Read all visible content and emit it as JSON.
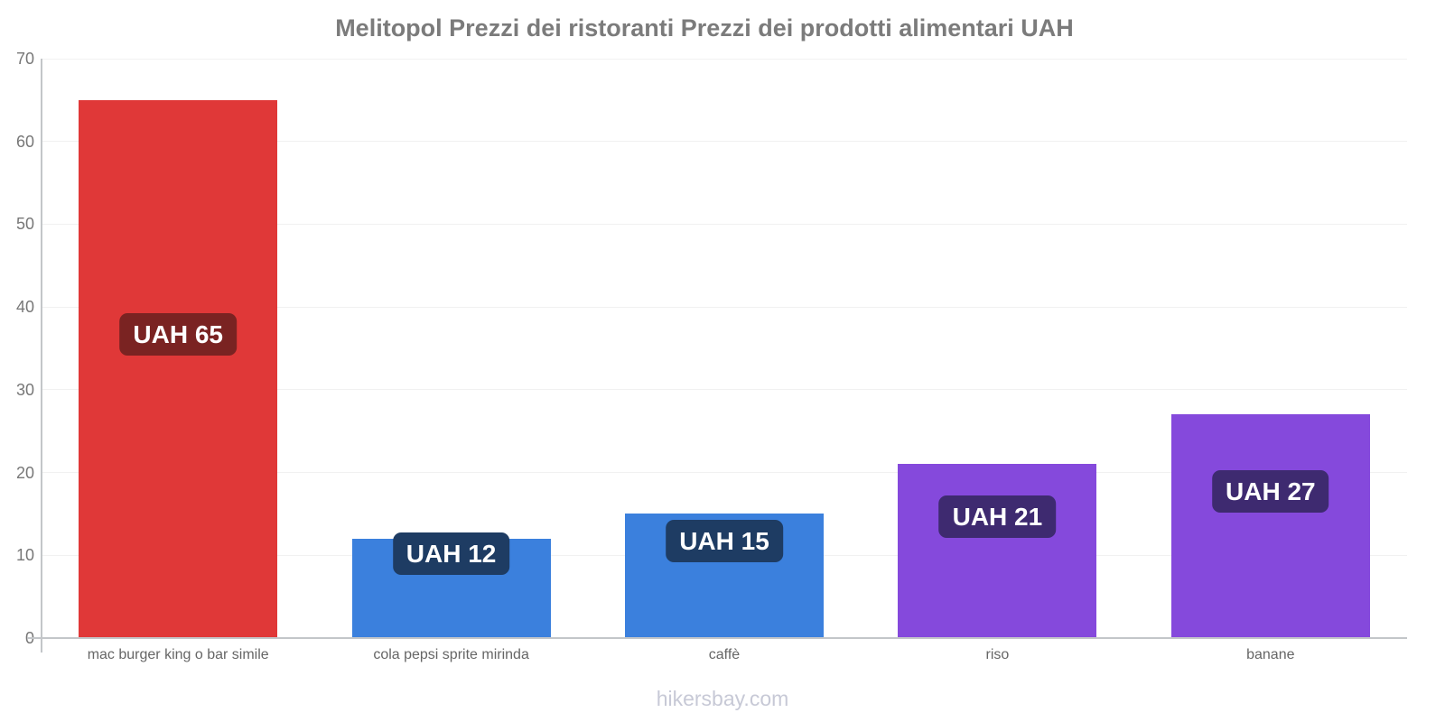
{
  "title": "Melitopol Prezzi dei ristoranti Prezzi dei prodotti alimentari UAH",
  "footer": "hikersbay.com",
  "colors": {
    "title_text": "#7b7b7b",
    "axis": "#c3c6c9",
    "grid": "#f1f1f1",
    "tick_text": "#777777",
    "category_text": "#666666",
    "footer_text": "#c7c9d6",
    "badge_text": "#ffffff"
  },
  "chart_data": {
    "type": "bar",
    "title": "Melitopol Prezzi dei ristoranti Prezzi dei prodotti alimentari UAH",
    "categories": [
      "mac burger king o bar simile",
      "cola pepsi sprite mirinda",
      "caffè",
      "riso",
      "banane"
    ],
    "values": [
      65,
      12,
      15,
      21,
      27
    ],
    "bar_labels": [
      "UAH 65",
      "UAH 12",
      "UAH 15",
      "UAH 21",
      "UAH 27"
    ],
    "currency": "UAH",
    "xlabel": "",
    "ylabel": "",
    "ylim": [
      0,
      70
    ],
    "yticks": [
      0,
      10,
      20,
      30,
      40,
      50,
      60,
      70
    ],
    "grid": true,
    "legend": false,
    "bar_colors": [
      "#e03838",
      "#3b80dd",
      "#3b80dd",
      "#8549dc",
      "#8549dc"
    ],
    "badge_colors": [
      "#7a2322",
      "#1e3c63",
      "#1e3c63",
      "#3e2a70",
      "#3e2a70"
    ]
  }
}
